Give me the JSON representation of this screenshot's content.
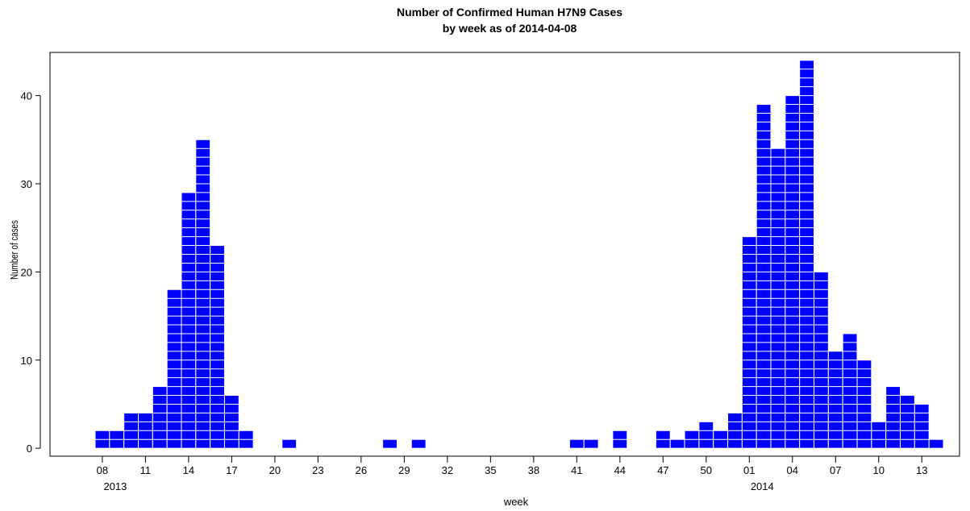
{
  "chart_data": {
    "type": "bar",
    "title": "Number of Confirmed Human H7N9 Cases",
    "subtitle": "by week as of 2014-04-08",
    "x_label": "week",
    "y_label": "Number of cases",
    "year_labels": [
      "2013",
      "2014"
    ],
    "categories": [
      "08",
      null,
      null,
      "11",
      null,
      null,
      "14",
      null,
      null,
      "17",
      null,
      null,
      "20",
      null,
      null,
      "23",
      null,
      null,
      "26",
      null,
      null,
      "29",
      null,
      null,
      "32",
      null,
      null,
      "35",
      null,
      null,
      "38",
      null,
      null,
      "41",
      null,
      null,
      "44",
      null,
      null,
      "47",
      null,
      null,
      "50",
      null,
      null,
      "01",
      null,
      null,
      "04",
      null,
      null,
      "07",
      null,
      null,
      "10",
      null,
      null,
      "13",
      null
    ],
    "values": [
      2,
      2,
      4,
      4,
      7,
      18,
      29,
      35,
      23,
      6,
      2,
      0,
      0,
      1,
      0,
      0,
      0,
      0,
      0,
      0,
      1,
      0,
      1,
      0,
      0,
      0,
      0,
      0,
      0,
      0,
      0,
      0,
      0,
      1,
      1,
      0,
      2,
      0,
      0,
      2,
      1,
      2,
      3,
      2,
      4,
      24,
      39,
      34,
      40,
      44,
      20,
      11,
      13,
      10,
      3,
      7,
      6,
      5,
      1
    ],
    "color": "#0000ff",
    "ylim": [
      -0.9,
      44.9
    ],
    "yticks": [
      0,
      10,
      20,
      30,
      40
    ]
  }
}
